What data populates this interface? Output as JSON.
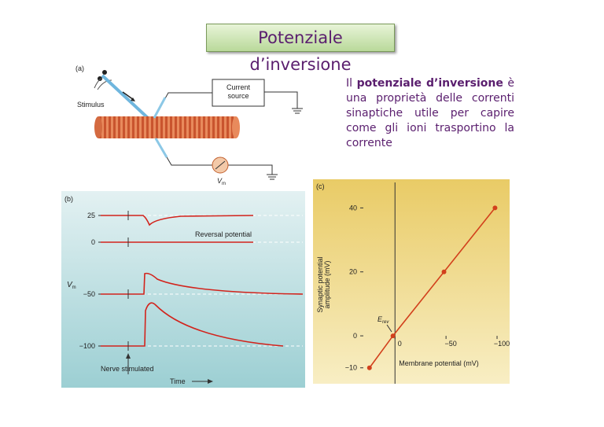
{
  "title": "Potenziale d’inversione",
  "text": {
    "start": "Il",
    "bold": "potenziale d’inversione",
    "rest": "è una proprietà delle correnti sinaptiche utile per capire come gli ioni trasportino la corrente"
  },
  "figure_a": {
    "label": "(a)",
    "stimulus": "Stimulus",
    "current_source": [
      "Current",
      "source"
    ],
    "vm": "V",
    "vm_sub": "m"
  },
  "figure_b": {
    "label": "(b)",
    "ticks": [
      "25",
      "0",
      "−50",
      "−100"
    ],
    "y_label": "V",
    "y_label_sub": "m",
    "reversal": "Reversal potential",
    "nerve": "Nerve stimulated",
    "time": "Time"
  },
  "chart_data": {
    "type": "line",
    "panel_label": "(c)",
    "x_label": "Membrane potential (mV)",
    "y_label": [
      "Synaptic potential",
      "amplitude (mV)"
    ],
    "annotation": "E",
    "annotation_sub": "rev",
    "x": [
      25,
      2,
      -48,
      -98
    ],
    "series": [
      {
        "name": "Synaptic potential",
        "color": "#d2401c",
        "values": [
          -10,
          0,
          20,
          40
        ]
      }
    ],
    "xlim": [
      31,
      -110
    ],
    "ylim": [
      -14,
      46
    ],
    "xticks": [
      0,
      {
        "value": -50,
        "label": "−50"
      },
      {
        "value": -100,
        "label": "−100"
      }
    ],
    "yticks": [
      {
        "value": -10,
        "label": "−10"
      },
      0,
      20,
      40
    ]
  }
}
